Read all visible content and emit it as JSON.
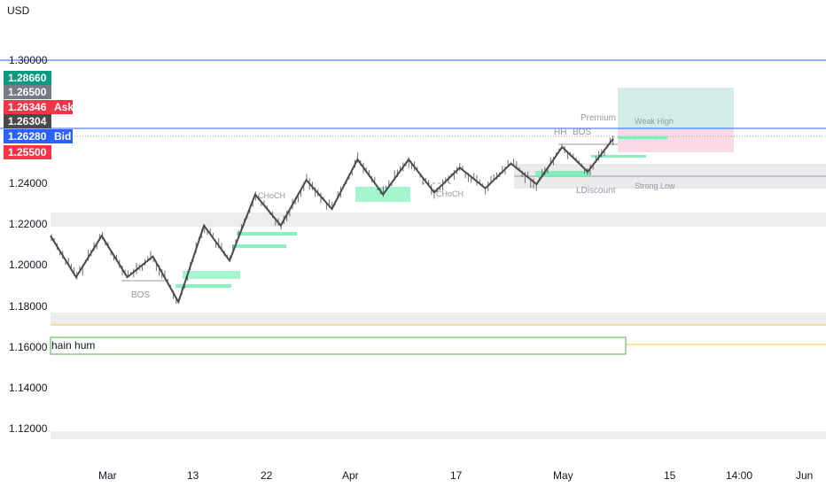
{
  "currency": "USD",
  "chart_data": {
    "type": "candlestick",
    "y_axis": {
      "ticks": [
        "1.30000",
        "1.24000",
        "1.22000",
        "1.20000",
        "1.18000",
        "1.16000",
        "1.14000",
        "1.12000"
      ],
      "range": [
        1.11,
        1.32
      ]
    },
    "x_axis": {
      "ticks": [
        "Mar",
        "13",
        "22",
        "Apr",
        "17",
        "May",
        "15",
        "14:00",
        "Jun"
      ]
    },
    "price_tags": [
      {
        "value": "1.28660",
        "color": "#089981",
        "label": ""
      },
      {
        "value": "1.26500",
        "color": "#787b86",
        "label": ""
      },
      {
        "value": "1.26346",
        "color": "#f23645",
        "label": "Ask"
      },
      {
        "value": "1.26304",
        "color": "#4a4a4a",
        "label": ""
      },
      {
        "value": "1.26280",
        "color": "#2962ff",
        "label": "Bid"
      },
      {
        "value": "1.25500",
        "color": "#f23645",
        "label": ""
      }
    ],
    "annotations": [
      "BOS",
      "CHoCH",
      "CHoCH",
      "HH",
      "BOS",
      "Premium",
      "LDiscount",
      "Weak High",
      "Strong Low",
      "hain hum"
    ],
    "swing_points": [
      1.215,
      1.195,
      1.215,
      1.195,
      1.205,
      1.183,
      1.22,
      1.203,
      1.235,
      1.22,
      1.242,
      1.228,
      1.252,
      1.235,
      1.252,
      1.236,
      1.248,
      1.238,
      1.25,
      1.24,
      1.258,
      1.246,
      1.262
    ],
    "horizontal_levels": [
      1.3,
      1.2628,
      1.2618,
      1.16,
      1.165
    ]
  }
}
